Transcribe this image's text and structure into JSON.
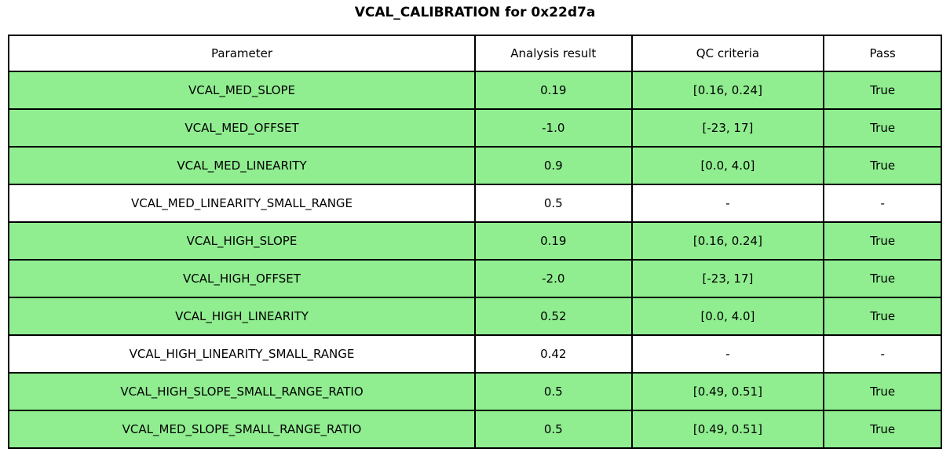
{
  "title": "VCAL_CALIBRATION for 0x22d7a",
  "colors": {
    "pass_row_background": "#90EE90",
    "na_row_background": "#FFFFFF",
    "border": "#000000",
    "text": "#000000"
  },
  "chart_data": {
    "type": "table",
    "title": "VCAL_CALIBRATION for 0x22d7a",
    "columns": [
      "Parameter",
      "Analysis result",
      "QC criteria",
      "Pass"
    ],
    "rows": [
      {
        "parameter": "VCAL_MED_SLOPE",
        "result": "0.19",
        "criteria": "[0.16, 0.24]",
        "pass": "True",
        "status": "pass"
      },
      {
        "parameter": "VCAL_MED_OFFSET",
        "result": "-1.0",
        "criteria": "[-23, 17]",
        "pass": "True",
        "status": "pass"
      },
      {
        "parameter": "VCAL_MED_LINEARITY",
        "result": "0.9",
        "criteria": "[0.0, 4.0]",
        "pass": "True",
        "status": "pass"
      },
      {
        "parameter": "VCAL_MED_LINEARITY_SMALL_RANGE",
        "result": "0.5",
        "criteria": "-",
        "pass": "-",
        "status": "na"
      },
      {
        "parameter": "VCAL_HIGH_SLOPE",
        "result": "0.19",
        "criteria": "[0.16, 0.24]",
        "pass": "True",
        "status": "pass"
      },
      {
        "parameter": "VCAL_HIGH_OFFSET",
        "result": "-2.0",
        "criteria": "[-23, 17]",
        "pass": "True",
        "status": "pass"
      },
      {
        "parameter": "VCAL_HIGH_LINEARITY",
        "result": "0.52",
        "criteria": "[0.0, 4.0]",
        "pass": "True",
        "status": "pass"
      },
      {
        "parameter": "VCAL_HIGH_LINEARITY_SMALL_RANGE",
        "result": "0.42",
        "criteria": "-",
        "pass": "-",
        "status": "na"
      },
      {
        "parameter": "VCAL_HIGH_SLOPE_SMALL_RANGE_RATIO",
        "result": "0.5",
        "criteria": "[0.49, 0.51]",
        "pass": "True",
        "status": "pass"
      },
      {
        "parameter": "VCAL_MED_SLOPE_SMALL_RANGE_RATIO",
        "result": "0.5",
        "criteria": "[0.49, 0.51]",
        "pass": "True",
        "status": "pass"
      }
    ]
  }
}
